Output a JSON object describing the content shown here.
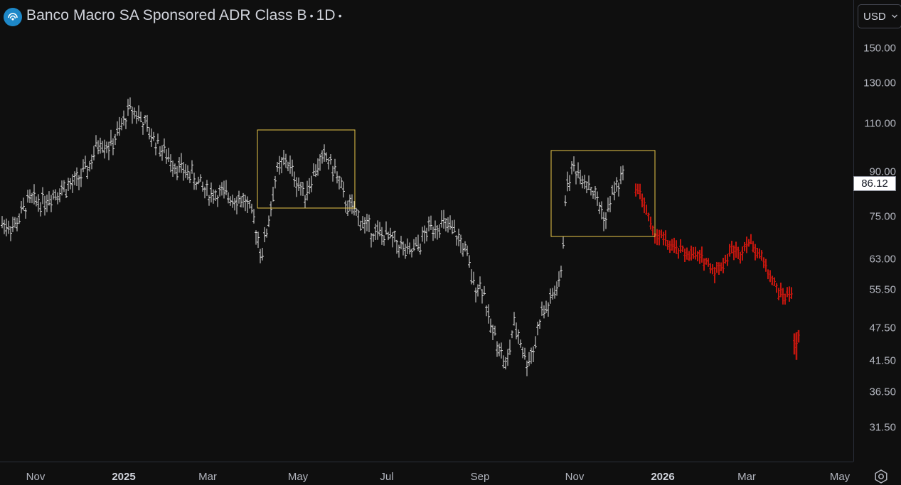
{
  "header": {
    "title": "Banco Macro SA Sponsored ADR Class B",
    "interval": "1D",
    "logo_icon": "bank-logo-icon"
  },
  "currency": {
    "label": "USD",
    "icon": "chevron-down-icon"
  },
  "price_axis": {
    "labels": [
      "150.00",
      "130.00",
      "110.00",
      "90.00",
      "75.00",
      "63.00",
      "55.50",
      "47.50",
      "41.50",
      "36.50",
      "31.50"
    ],
    "last_price": "86.12",
    "scale": "log"
  },
  "time_axis": {
    "labels": [
      {
        "text": "Nov",
        "bold": false
      },
      {
        "text": "2025",
        "bold": true
      },
      {
        "text": "Mar",
        "bold": false
      },
      {
        "text": "May",
        "bold": false
      },
      {
        "text": "Jul",
        "bold": false
      },
      {
        "text": "Sep",
        "bold": false
      },
      {
        "text": "Nov",
        "bold": false
      },
      {
        "text": "2026",
        "bold": true
      },
      {
        "text": "Mar",
        "bold": false
      },
      {
        "text": "May",
        "bold": false
      }
    ]
  },
  "settings": {
    "icon": "settings-gear-icon"
  },
  "colors": {
    "background": "#0f0f0f",
    "bar": "#e0e0e0",
    "projection": "#c2160e",
    "box": "#e8c74a",
    "logo": "#1e88c8"
  },
  "chart_data": {
    "type": "ohlc",
    "scale": "log",
    "ylim": [
      28,
      165
    ],
    "x": [
      "2024-10",
      "2024-11",
      "2024-12",
      "2025-01",
      "2025-02",
      "2025-03",
      "2025-04",
      "2025-05",
      "2025-06",
      "2025-07",
      "2025-08",
      "2025-09",
      "2025-10",
      "2025-11",
      "2025-12",
      "2026-01",
      "2026-02",
      "2026-03",
      "2026-04"
    ],
    "series": [
      {
        "role": "price",
        "color": "#e0e0e0",
        "values": [
          72,
          80,
          90,
          110,
          105,
          88,
          80,
          95,
          93,
          72,
          70,
          53,
          45,
          55,
          88,
          0,
          0,
          0,
          0
        ]
      },
      {
        "role": "projection",
        "color": "#c2160e",
        "values": [
          0,
          0,
          0,
          0,
          0,
          0,
          0,
          0,
          0,
          0,
          0,
          0,
          0,
          0,
          80,
          66,
          66,
          62,
          45
        ]
      }
    ],
    "annotations": [
      {
        "type": "rectangle",
        "color": "#e8c74a",
        "from": "2025-04",
        "to": "2025-06",
        "range": [
          77,
          105
        ]
      },
      {
        "type": "rectangle",
        "color": "#e8c74a",
        "from": "2025-10",
        "to": "2025-12",
        "range": [
          68,
          100
        ]
      }
    ]
  }
}
